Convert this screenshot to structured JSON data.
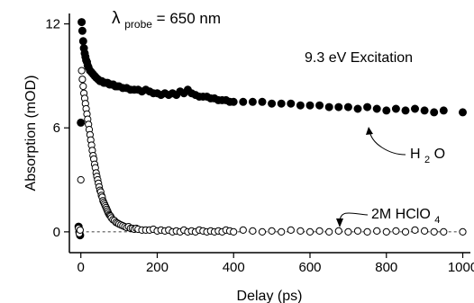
{
  "chart_data": {
    "type": "scatter",
    "xlabel": "Delay (ps)",
    "ylabel": "Absorption (mOD)",
    "xlim": [
      -30,
      1020
    ],
    "ylim": [
      -1.2,
      12.6
    ],
    "xticks": [
      0,
      200,
      400,
      600,
      800,
      1000
    ],
    "yticks": [
      0,
      6,
      12
    ],
    "zero_line": "dashed",
    "annotations": {
      "probe_prefix": "λ",
      "probe_subscript": "probe",
      "probe_suffix": " = 650 nm",
      "excitation": "9.3 eV Excitation",
      "water_main": "H",
      "water_sub": "2",
      "water_end": "O",
      "acid_main": "2M HClO",
      "acid_sub": "4"
    },
    "series": [
      {
        "name": "H2O",
        "marker": "filled-circle",
        "x": [
          -6,
          -4,
          -2,
          0,
          2,
          4,
          6,
          8,
          10,
          12,
          14,
          16,
          18,
          20,
          24,
          28,
          32,
          36,
          40,
          45,
          50,
          55,
          60,
          65,
          70,
          75,
          80,
          85,
          90,
          95,
          100,
          110,
          120,
          130,
          140,
          150,
          160,
          170,
          180,
          190,
          200,
          210,
          220,
          230,
          240,
          250,
          260,
          270,
          280,
          290,
          300,
          310,
          320,
          330,
          340,
          350,
          360,
          370,
          380,
          390,
          400,
          425,
          450,
          475,
          500,
          525,
          550,
          575,
          600,
          625,
          650,
          675,
          700,
          725,
          750,
          775,
          800,
          825,
          850,
          875,
          900,
          925,
          950,
          1000
        ],
        "y": [
          0.3,
          0.0,
          -0.2,
          6.3,
          12.1,
          11.6,
          11.0,
          10.6,
          10.3,
          10.1,
          9.9,
          9.8,
          9.6,
          9.5,
          9.3,
          9.2,
          9.1,
          9.0,
          8.9,
          8.8,
          8.7,
          8.7,
          8.6,
          8.6,
          8.6,
          8.5,
          8.5,
          8.5,
          8.4,
          8.4,
          8.4,
          8.3,
          8.3,
          8.2,
          8.2,
          8.2,
          8.1,
          8.2,
          8.1,
          8.0,
          8.0,
          7.9,
          8.0,
          7.9,
          8.0,
          7.9,
          8.1,
          8.0,
          8.2,
          8.0,
          7.9,
          7.8,
          7.8,
          7.8,
          7.7,
          7.7,
          7.6,
          7.6,
          7.6,
          7.5,
          7.5,
          7.5,
          7.5,
          7.5,
          7.4,
          7.4,
          7.4,
          7.3,
          7.3,
          7.3,
          7.2,
          7.2,
          7.2,
          7.1,
          7.2,
          7.1,
          7.0,
          7.1,
          7.0,
          7.1,
          7.0,
          6.9,
          7.0,
          6.9
        ]
      },
      {
        "name": "2M HClO4",
        "marker": "open-circle",
        "x": [
          -6,
          -4,
          -2,
          0,
          2,
          4,
          6,
          8,
          10,
          12,
          14,
          16,
          18,
          20,
          22,
          24,
          26,
          28,
          30,
          32,
          34,
          36,
          38,
          40,
          42,
          44,
          46,
          48,
          50,
          52,
          54,
          56,
          58,
          60,
          62,
          64,
          66,
          68,
          70,
          72,
          74,
          76,
          78,
          80,
          84,
          88,
          92,
          96,
          100,
          105,
          110,
          115,
          120,
          125,
          130,
          135,
          140,
          145,
          150,
          160,
          170,
          180,
          190,
          200,
          210,
          220,
          230,
          240,
          250,
          260,
          270,
          280,
          290,
          300,
          310,
          320,
          330,
          340,
          350,
          360,
          370,
          380,
          390,
          400,
          425,
          450,
          475,
          500,
          525,
          550,
          575,
          600,
          625,
          650,
          675,
          700,
          725,
          750,
          775,
          800,
          825,
          850,
          875,
          900,
          925,
          950,
          1000
        ],
        "y": [
          0.2,
          -0.1,
          0.1,
          3.0,
          9.3,
          8.8,
          8.4,
          8.0,
          7.7,
          7.4,
          7.1,
          6.8,
          6.5,
          6.2,
          5.9,
          5.6,
          5.3,
          5.0,
          4.7,
          4.4,
          4.2,
          3.9,
          3.7,
          3.4,
          3.2,
          3.0,
          2.8,
          2.6,
          2.4,
          2.3,
          2.1,
          2.0,
          1.8,
          1.7,
          1.6,
          1.5,
          1.4,
          1.3,
          1.2,
          1.1,
          1.0,
          0.95,
          0.9,
          0.8,
          0.7,
          0.65,
          0.55,
          0.5,
          0.45,
          0.4,
          0.35,
          0.3,
          0.25,
          0.3,
          0.2,
          0.2,
          0.15,
          0.2,
          0.15,
          0.1,
          0.1,
          0.1,
          0.15,
          0.05,
          0.1,
          0.05,
          0.1,
          0.0,
          0.05,
          0.0,
          0.1,
          0.0,
          0.05,
          0.0,
          0.1,
          0.05,
          0.0,
          0.05,
          0.0,
          0.05,
          0.0,
          0.1,
          0.05,
          0.0,
          0.1,
          0.05,
          0.0,
          0.05,
          0.0,
          0.1,
          0.05,
          0.0,
          0.05,
          0.0,
          0.05,
          0.0,
          0.05,
          0.0,
          0.05,
          0.0,
          0.05,
          0.0,
          0.1,
          0.05,
          0.0,
          0.0,
          0.0
        ]
      }
    ]
  }
}
